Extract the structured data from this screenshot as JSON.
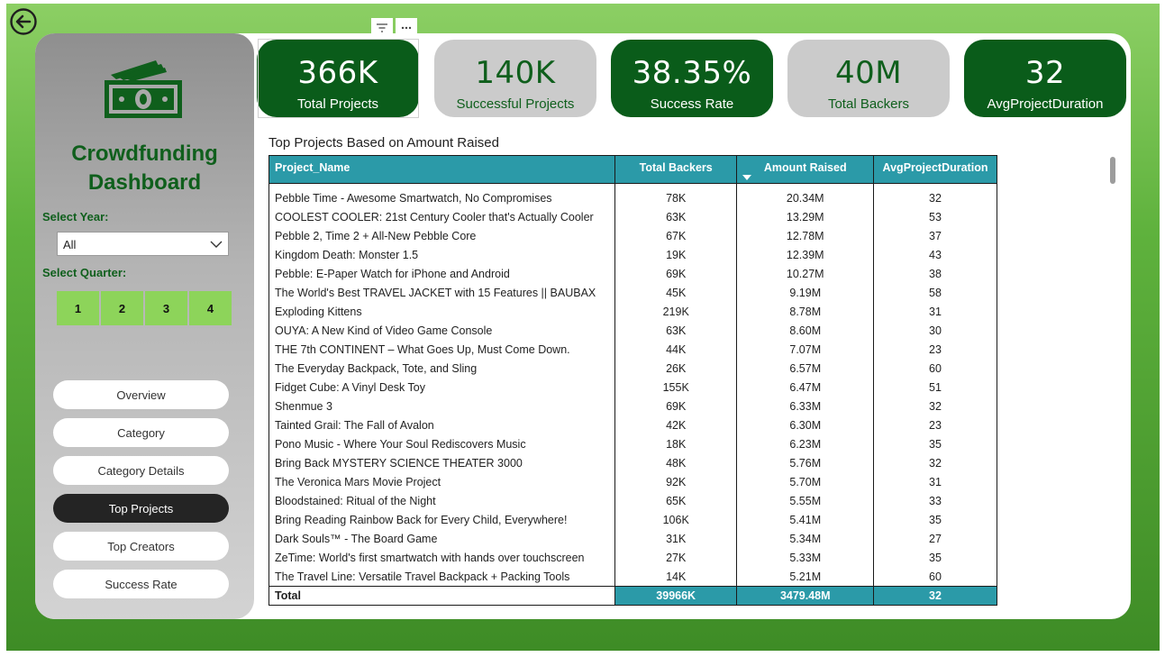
{
  "sidebar": {
    "title_line1": "Crowdfunding",
    "title_line2": "Dashboard",
    "year_label": "Select Year:",
    "year_value": "All",
    "quarter_label": "Select Quarter:",
    "quarters": [
      "1",
      "2",
      "3",
      "4"
    ],
    "nav": [
      "Overview",
      "Category",
      "Category Details",
      "Top Projects",
      "Top Creators",
      "Success Rate"
    ],
    "active_nav": "Top Projects"
  },
  "kpis": [
    {
      "value": "366K",
      "label": "Total Projects",
      "style": "dark"
    },
    {
      "value": "140K",
      "label": "Successful Projects",
      "style": "light"
    },
    {
      "value": "38.35%",
      "label": "Success Rate",
      "style": "dark"
    },
    {
      "value": "40M",
      "label": "Total Backers",
      "style": "light"
    },
    {
      "value": "32",
      "label": "AvgProjectDuration",
      "style": "dark"
    }
  ],
  "table": {
    "title": "Top Projects Based on Amount Raised",
    "columns": [
      "Project_Name",
      "Total Backers",
      "Amount Raised",
      "AvgProjectDuration"
    ],
    "sorted_column": "Amount Raised",
    "rows": [
      [
        "Pebble Time - Awesome Smartwatch, No Compromises",
        "78K",
        "20.34M",
        "32"
      ],
      [
        "COOLEST COOLER: 21st Century Cooler that's Actually Cooler",
        "63K",
        "13.29M",
        "53"
      ],
      [
        "Pebble 2, Time 2 + All-New Pebble Core",
        "67K",
        "12.78M",
        "37"
      ],
      [
        "Kingdom Death: Monster 1.5",
        "19K",
        "12.39M",
        "43"
      ],
      [
        "Pebble: E-Paper Watch for iPhone and Android",
        "69K",
        "10.27M",
        "38"
      ],
      [
        "The World's Best TRAVEL JACKET with 15 Features || BAUBAX",
        "45K",
        "9.19M",
        "58"
      ],
      [
        "Exploding Kittens",
        "219K",
        "8.78M",
        "31"
      ],
      [
        "OUYA: A New Kind of Video Game Console",
        "63K",
        "8.60M",
        "30"
      ],
      [
        "THE 7th CONTINENT – What Goes Up, Must Come Down.",
        "44K",
        "7.07M",
        "23"
      ],
      [
        "The Everyday Backpack, Tote, and Sling",
        "26K",
        "6.57M",
        "60"
      ],
      [
        "Fidget Cube: A Vinyl Desk Toy",
        "155K",
        "6.47M",
        "51"
      ],
      [
        "Shenmue 3",
        "69K",
        "6.33M",
        "32"
      ],
      [
        "Tainted Grail: The Fall of Avalon",
        "42K",
        "6.30M",
        "23"
      ],
      [
        "Pono Music - Where Your Soul Rediscovers Music",
        "18K",
        "6.23M",
        "35"
      ],
      [
        "Bring Back MYSTERY SCIENCE THEATER 3000",
        "48K",
        "5.76M",
        "32"
      ],
      [
        "The Veronica Mars Movie Project",
        "92K",
        "5.70M",
        "31"
      ],
      [
        "Bloodstained: Ritual of the Night",
        "65K",
        "5.55M",
        "33"
      ],
      [
        "Bring Reading Rainbow Back for Every Child, Everywhere!",
        "106K",
        "5.41M",
        "35"
      ],
      [
        "Dark Souls™ - The Board Game",
        "31K",
        "5.34M",
        "27"
      ],
      [
        "ZeTime: World's first smartwatch with hands over touchscreen",
        "27K",
        "5.33M",
        "35"
      ],
      [
        "The Travel Line: Versatile Travel Backpack + Packing Tools",
        "14K",
        "5.21M",
        "60"
      ]
    ],
    "total": [
      "Total",
      "39966K",
      "3479.48M",
      "32"
    ]
  },
  "colors": {
    "dark_green": "#0a5c1a",
    "light_gray": "#cbcbcb",
    "teal": "#2b9aa8",
    "quarter_green": "#8dd45a"
  }
}
